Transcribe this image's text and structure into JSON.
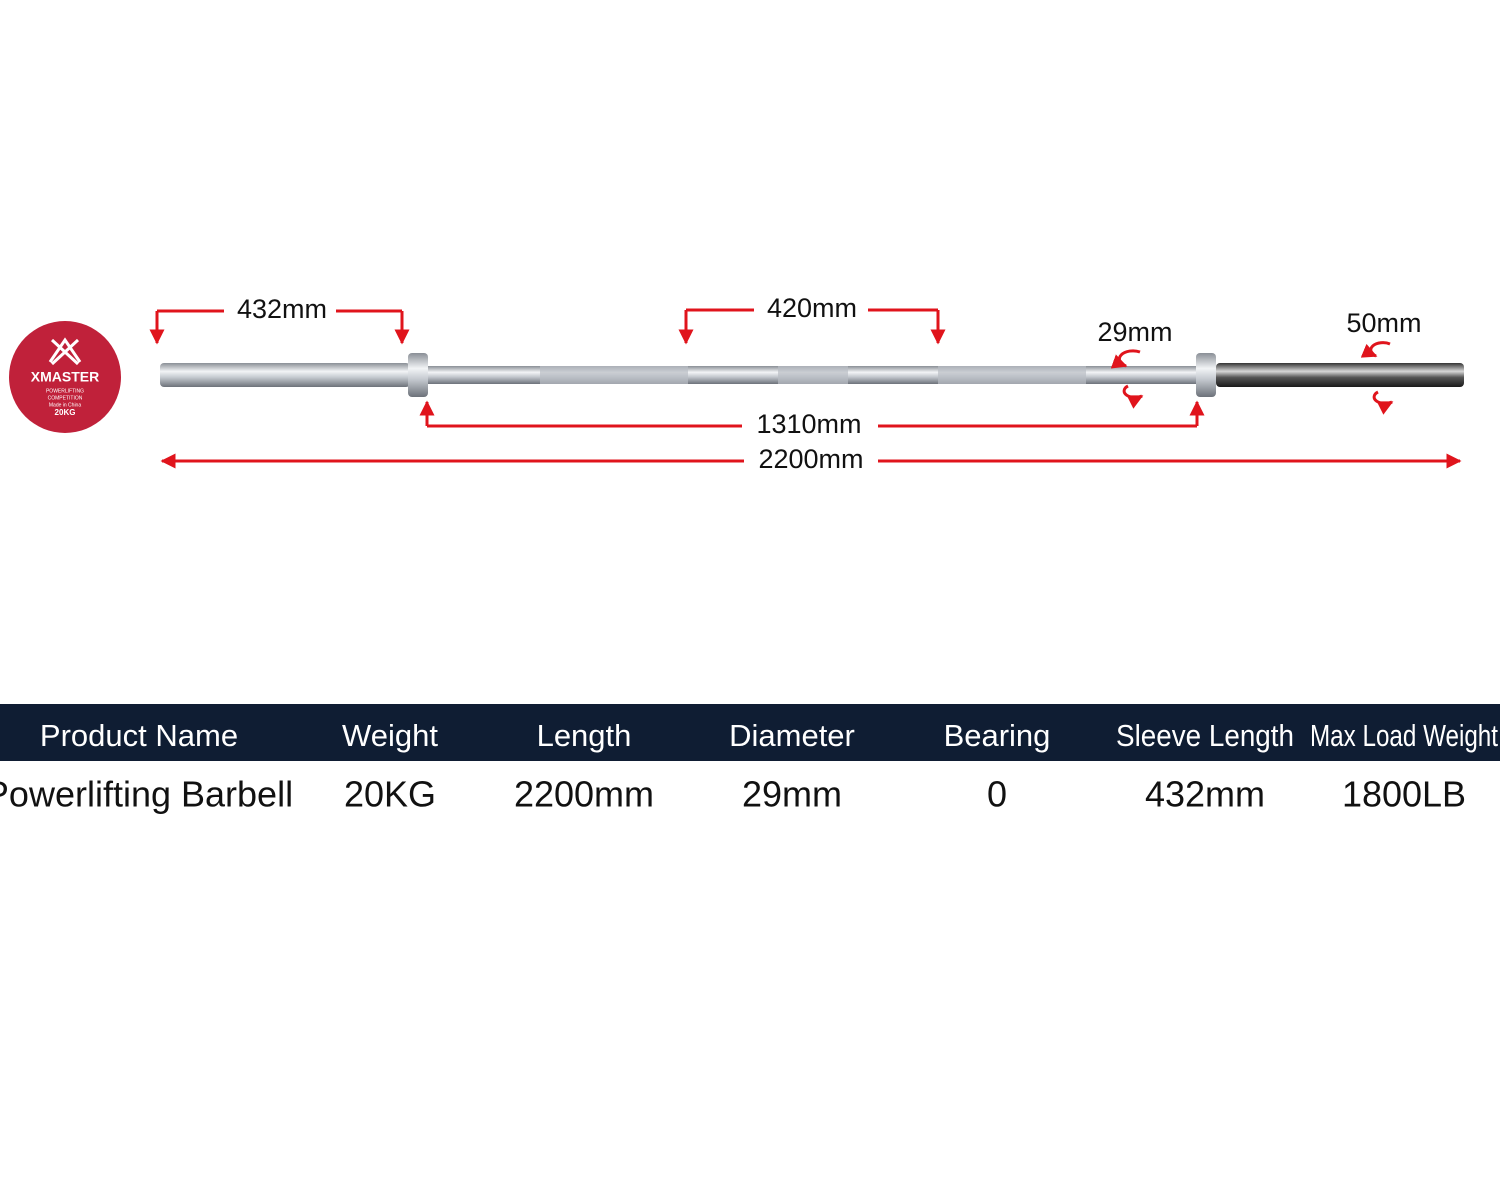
{
  "logo": {
    "brand": "XMASTER",
    "lines": [
      "POWERLIFTING",
      "COMPETITION",
      "Made in China",
      "20KG"
    ]
  },
  "dimensions": {
    "sleeve_length": "432mm",
    "center_knurl": "420mm",
    "shaft_diameter": "29mm",
    "sleeve_diameter": "50mm",
    "inner_length": "1310mm",
    "total_length": "2200mm"
  },
  "table": {
    "header": [
      "Product Name",
      "Weight",
      "Length",
      "Diameter",
      "Bearing",
      "Sleeve Length",
      "Max Load Weight"
    ],
    "rows": [
      [
        "Powerlifting Barbell",
        "20KG",
        "2200mm",
        "29mm",
        "0",
        "432mm",
        "1800LB"
      ]
    ]
  }
}
